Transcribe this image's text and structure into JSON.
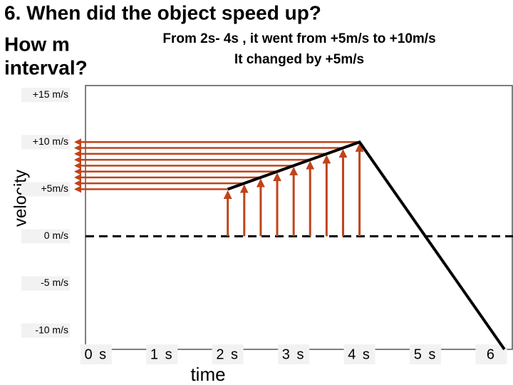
{
  "chart_data": {
    "type": "line",
    "title": "6. When did the object speed up?",
    "title_fragments": [
      "How m",
      "interval?"
    ],
    "annotations": [
      "From 2s- 4s , it went from +5m/s to +10m/s",
      "It changed by +5m/s"
    ],
    "x_label": "time",
    "y_label": "velocity",
    "xlim": [
      -0.16,
      6.33
    ],
    "ylim": [
      -12,
      16
    ],
    "xticks": [
      {
        "value": 0,
        "label": "0 s"
      },
      {
        "value": 1,
        "label": "1 s"
      },
      {
        "value": 2,
        "label": "2 s"
      },
      {
        "value": 3,
        "label": "3 s"
      },
      {
        "value": 4,
        "label": "4 s"
      },
      {
        "value": 5,
        "label": "5 s"
      },
      {
        "value": 6,
        "label": "6"
      }
    ],
    "yticks": [
      {
        "value": 15,
        "label": "+15 m/s"
      },
      {
        "value": 10,
        "label": "+10 m/s"
      },
      {
        "value": 5,
        "label": "+5m/s"
      },
      {
        "value": 0,
        "label": "0 m/s"
      },
      {
        "value": -5,
        "label": "-5 m/s"
      },
      {
        "value": -10,
        "label": "-10 m/s"
      }
    ],
    "zero_line": {
      "value": 0,
      "style": "dashed"
    },
    "series": [
      {
        "color": "#000000",
        "x": [
          2,
          4,
          6.2
        ],
        "values": [
          5,
          10,
          -12
        ]
      }
    ],
    "arrows": {
      "color": "#c0441a",
      "x": [
        2,
        2.25,
        2.5,
        2.75,
        3,
        3.25,
        3.5,
        3.75,
        4
      ],
      "values": [
        5,
        5.625,
        6.25,
        6.875,
        7.5,
        8.125,
        8.75,
        9.375,
        10
      ]
    }
  }
}
